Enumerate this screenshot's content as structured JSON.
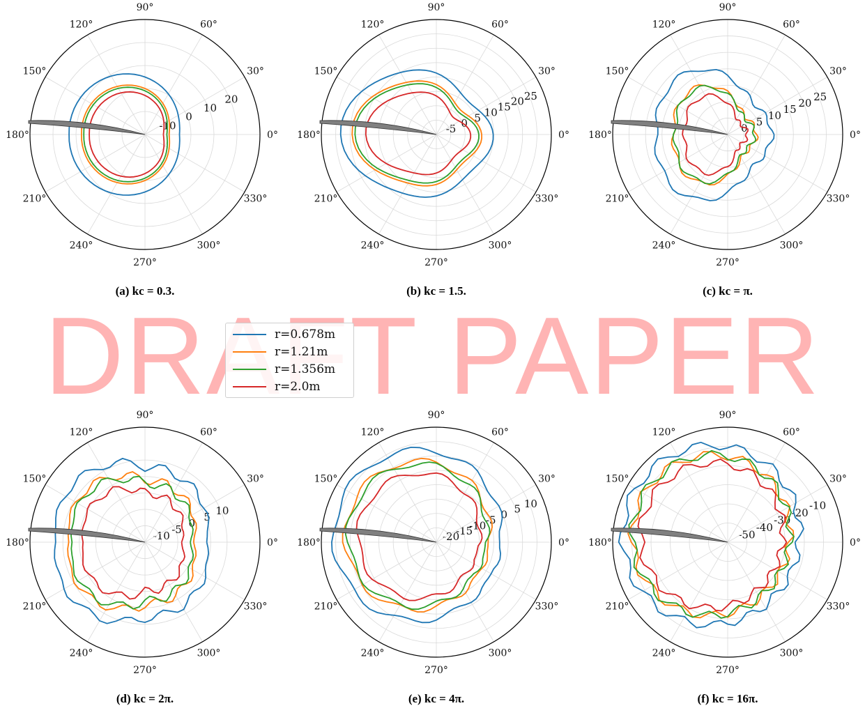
{
  "watermark": "DRAFT PAPER",
  "legend": [
    {
      "label": "r=0.678m",
      "color": "#1f77b4"
    },
    {
      "label": "r=1.21m",
      "color": "#ff7f0e"
    },
    {
      "label": "r=1.356m",
      "color": "#2ca02c"
    },
    {
      "label": "r=2.0m",
      "color": "#d62728"
    }
  ],
  "chart_data": [
    {
      "type": "polar-line",
      "caption": "(a) kc = 0.3.",
      "angle_ticks": [
        "0°",
        "30°",
        "60°",
        "90°",
        "120°",
        "150°",
        "180°",
        "210°",
        "240°",
        "270°",
        "300°",
        "330°"
      ],
      "radial_ticks": [
        "-10",
        "0",
        "10",
        "20"
      ],
      "rlim": [
        -20,
        30
      ],
      "series": [
        {
          "name": "r=0.678m",
          "color": "#1f77b4",
          "pattern": "cardioid",
          "base": 5,
          "amp": 20
        },
        {
          "name": "r=1.21m",
          "color": "#ff7f0e",
          "pattern": "cardioid",
          "base": 0,
          "amp": 19
        },
        {
          "name": "r=1.356m",
          "color": "#2ca02c",
          "pattern": "cardioid",
          "base": -1,
          "amp": 19
        },
        {
          "name": "r=2.0m",
          "color": "#d62728",
          "pattern": "cardioid",
          "base": -3,
          "amp": 18
        }
      ]
    },
    {
      "type": "polar-line",
      "caption": "(b) kc = 1.5.",
      "angle_ticks": [
        "0°",
        "30°",
        "60°",
        "90°",
        "120°",
        "150°",
        "180°",
        "210°",
        "240°",
        "270°",
        "300°",
        "330°"
      ],
      "radial_ticks": [
        "-5",
        "0",
        "5",
        "10",
        "15",
        "20",
        "25"
      ],
      "rlim": [
        -10,
        30
      ],
      "series": [
        {
          "name": "r=0.678m",
          "color": "#1f77b4",
          "pattern": "lobed",
          "base": 12,
          "amp": 15
        },
        {
          "name": "r=1.21m",
          "color": "#ff7f0e",
          "pattern": "lobed",
          "base": 8,
          "amp": 15
        },
        {
          "name": "r=1.356m",
          "color": "#2ca02c",
          "pattern": "lobed",
          "base": 7,
          "amp": 15
        },
        {
          "name": "r=2.0m",
          "color": "#d62728",
          "pattern": "lobed",
          "base": 4,
          "amp": 14
        }
      ]
    },
    {
      "type": "polar-line",
      "caption": "(c) kc = π.",
      "angle_ticks": [
        "0°",
        "30°",
        "60°",
        "90°",
        "120°",
        "150°",
        "180°",
        "210°",
        "240°",
        "270°",
        "300°",
        "330°"
      ],
      "radial_ticks": [
        "0",
        "5",
        "10",
        "15",
        "20",
        "25"
      ],
      "rlim": [
        -5,
        30
      ],
      "series": [
        {
          "name": "r=0.678m",
          "color": "#1f77b4",
          "pattern": "wobble",
          "base": 12,
          "amp": 14
        },
        {
          "name": "r=1.21m",
          "color": "#ff7f0e",
          "pattern": "wobble",
          "base": 7,
          "amp": 13
        },
        {
          "name": "r=1.356m",
          "color": "#2ca02c",
          "pattern": "wobble",
          "base": 6.5,
          "amp": 13
        },
        {
          "name": "r=2.0m",
          "color": "#d62728",
          "pattern": "wobble",
          "base": 4,
          "amp": 12
        }
      ]
    },
    {
      "type": "polar-line",
      "caption": "(d) kc = 2π.",
      "angle_ticks": [
        "0°",
        "30°",
        "60°",
        "90°",
        "120°",
        "150°",
        "180°",
        "210°",
        "240°",
        "270°",
        "300°",
        "330°"
      ],
      "radial_ticks": [
        "-10",
        "-5",
        "0",
        "5",
        "10"
      ],
      "rlim": [
        -15,
        20
      ],
      "series": [
        {
          "name": "r=0.678m",
          "color": "#1f77b4",
          "pattern": "spiky",
          "base": 8,
          "amp": 12
        },
        {
          "name": "r=1.21m",
          "color": "#ff7f0e",
          "pattern": "spiky",
          "base": 4,
          "amp": 12
        },
        {
          "name": "r=1.356m",
          "color": "#2ca02c",
          "pattern": "spiky",
          "base": 3,
          "amp": 12
        },
        {
          "name": "r=2.0m",
          "color": "#d62728",
          "pattern": "spiky",
          "base": 0,
          "amp": 11
        }
      ]
    },
    {
      "type": "polar-line",
      "caption": "(e) kc = 4π.",
      "angle_ticks": [
        "0°",
        "30°",
        "60°",
        "90°",
        "120°",
        "150°",
        "180°",
        "210°",
        "240°",
        "270°",
        "300°",
        "330°"
      ],
      "radial_ticks": [
        "-20",
        "-15",
        "-10",
        "-5",
        "0",
        "5",
        "10"
      ],
      "rlim": [
        -25,
        15
      ],
      "series": [
        {
          "name": "r=0.678m",
          "color": "#1f77b4",
          "pattern": "skewed",
          "base": 4,
          "amp": 14
        },
        {
          "name": "r=1.21m",
          "color": "#ff7f0e",
          "pattern": "skewed",
          "base": 0,
          "amp": 14
        },
        {
          "name": "r=1.356m",
          "color": "#2ca02c",
          "pattern": "skewed",
          "base": -1,
          "amp": 14
        },
        {
          "name": "r=2.0m",
          "color": "#d62728",
          "pattern": "skewed",
          "base": -4,
          "amp": 13
        }
      ]
    },
    {
      "type": "polar-line",
      "caption": "(f) kc = 16π.",
      "angle_ticks": [
        "0°",
        "30°",
        "60°",
        "90°",
        "120°",
        "150°",
        "180°",
        "210°",
        "240°",
        "270°",
        "300°",
        "330°"
      ],
      "radial_ticks": [
        "-50",
        "-40",
        "-30",
        "-20",
        "-10"
      ],
      "rlim": [
        -60,
        0
      ],
      "series": [
        {
          "name": "r=0.678m",
          "color": "#1f77b4",
          "pattern": "jagged",
          "base": -14,
          "amp": 22
        },
        {
          "name": "r=1.21m",
          "color": "#ff7f0e",
          "pattern": "jagged",
          "base": -19,
          "amp": 22
        },
        {
          "name": "r=1.356m",
          "color": "#2ca02c",
          "pattern": "jagged",
          "base": -19,
          "amp": 22
        },
        {
          "name": "r=2.0m",
          "color": "#d62728",
          "pattern": "jagged",
          "base": -23,
          "amp": 21
        }
      ]
    }
  ]
}
